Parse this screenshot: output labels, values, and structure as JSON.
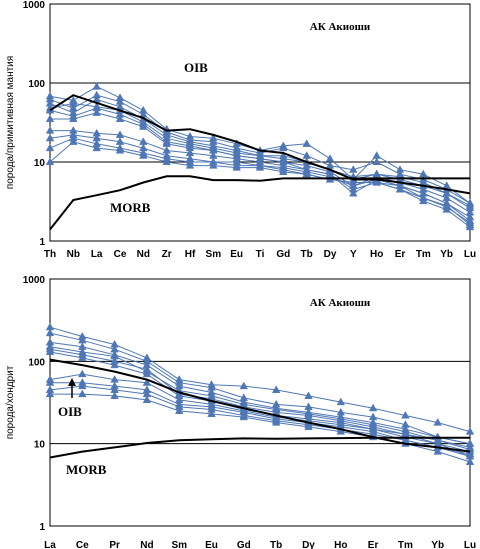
{
  "chart_data": [
    {
      "type": "line",
      "yscale": "log",
      "ylim": [
        1,
        1000
      ],
      "yticks": [
        "1",
        "10",
        "100",
        "1000"
      ],
      "ylabel": "порода/примитивная мантия",
      "title": "АК Акиоши",
      "categories": [
        "Th",
        "Nb",
        "La",
        "Ce",
        "Nd",
        "Zr",
        "Hf",
        "Sm",
        "Eu",
        "Ti",
        "Gd",
        "Tb",
        "Dy",
        "Y",
        "Ho",
        "Er",
        "Tm",
        "Yb",
        "Lu"
      ],
      "annotations": [
        {
          "text": "OIB"
        },
        {
          "text": "MORB"
        }
      ],
      "colors": {
        "samples": "#4f77b5",
        "reference": "#000000"
      },
      "grid": "horizontal",
      "reference_series": [
        {
          "name": "OIB",
          "values": [
            45,
            70,
            56,
            45,
            36,
            25,
            26,
            22,
            18,
            14,
            13,
            10,
            8,
            6,
            6,
            5.5,
            5,
            4.5,
            4
          ]
        },
        {
          "name": "MORB",
          "values": [
            1.4,
            3.3,
            3.8,
            4.4,
            5.5,
            6.6,
            6.6,
            5.9,
            5.9,
            5.8,
            6.2,
            6.2,
            6.2,
            6.2,
            6.2,
            6.2,
            6.2,
            6.2,
            6.2
          ]
        }
      ],
      "series": [
        {
          "values": [
            68,
            60,
            90,
            65,
            45,
            26,
            21,
            20,
            17,
            14,
            16,
            17,
            11,
            6,
            12,
            8,
            7,
            5,
            3
          ]
        },
        {
          "values": [
            62,
            48,
            70,
            58,
            40,
            24,
            19,
            18,
            15,
            13,
            15,
            12,
            9,
            8,
            10,
            7,
            6,
            4.5,
            3
          ]
        },
        {
          "values": [
            55,
            42,
            62,
            50,
            35,
            22,
            18,
            16,
            14,
            12,
            12,
            10,
            8,
            6,
            7,
            6.5,
            5.5,
            4,
            2.8
          ]
        },
        {
          "values": [
            48,
            55,
            50,
            45,
            32,
            20,
            17,
            15,
            13,
            12,
            11,
            10,
            8,
            6.5,
            7,
            6,
            5,
            4,
            2.6
          ]
        },
        {
          "values": [
            45,
            38,
            48,
            40,
            30,
            18,
            16,
            14,
            12,
            11,
            10,
            9,
            7.5,
            5,
            6.5,
            5.5,
            4.5,
            3.5,
            2.3
          ]
        },
        {
          "values": [
            35,
            35,
            42,
            35,
            28,
            17,
            15,
            14,
            12,
            11,
            10,
            8,
            7,
            4,
            6,
            5,
            4,
            3,
            2
          ]
        },
        {
          "values": [
            25,
            25,
            23,
            22,
            18,
            14,
            13,
            12,
            11,
            10,
            9,
            8,
            7,
            4.5,
            5.5,
            5,
            4,
            3,
            1.8
          ]
        },
        {
          "values": [
            20,
            22,
            20,
            18,
            15,
            12,
            11,
            10,
            10,
            9,
            8.5,
            7.5,
            6.5,
            5,
            6,
            5,
            3.5,
            2.8,
            1.6
          ]
        },
        {
          "values": [
            15,
            20,
            17,
            15,
            13,
            11,
            10,
            10,
            9,
            9,
            8,
            7,
            6,
            5.5,
            5.5,
            4.5,
            3.2,
            2.5,
            1.5
          ]
        },
        {
          "values": [
            10,
            18,
            15,
            14,
            12,
            10,
            9,
            9,
            8.5,
            8.5,
            7.5,
            7,
            6,
            5.5,
            5.5,
            4.5,
            3.5,
            2.7,
            1.7
          ]
        }
      ]
    },
    {
      "type": "line",
      "yscale": "log",
      "ylim": [
        1,
        1000
      ],
      "yticks": [
        "1",
        "10",
        "100",
        "1000"
      ],
      "ylabel": "порода/хондрит",
      "title": "АК Акиоши",
      "categories": [
        "La",
        "Ce",
        "Pr",
        "Nd",
        "Sm",
        "Eu",
        "Gd",
        "Tb",
        "Dy",
        "Ho",
        "Er",
        "Tm",
        "Yb",
        "Lu"
      ],
      "annotations": [
        {
          "text": "OIB"
        },
        {
          "text": "MORB"
        }
      ],
      "colors": {
        "samples": "#4f77b5",
        "reference": "#000000"
      },
      "grid": "horizontal",
      "reference_series": [
        {
          "name": "OIB",
          "values": [
            105,
            90,
            75,
            60,
            42,
            33,
            27,
            22,
            18,
            15,
            12,
            10,
            9,
            8
          ]
        },
        {
          "name": "MORB",
          "values": [
            6.8,
            8,
            9,
            10.2,
            11,
            11.3,
            11.6,
            11.5,
            11.6,
            11.7,
            11.8,
            11.8,
            11.8,
            11.8
          ]
        }
      ],
      "series": [
        {
          "values": [
            260,
            200,
            160,
            110,
            60,
            52,
            50,
            45,
            38,
            32,
            27,
            22,
            18,
            14
          ]
        },
        {
          "values": [
            220,
            180,
            140,
            100,
            55,
            48,
            36,
            30,
            28,
            24,
            21,
            17,
            12,
            10
          ]
        },
        {
          "values": [
            170,
            150,
            120,
            90,
            50,
            42,
            32,
            27,
            24,
            21,
            18,
            15,
            12,
            10
          ]
        },
        {
          "values": [
            150,
            130,
            115,
            75,
            44,
            38,
            30,
            26,
            23,
            20,
            17,
            14,
            11,
            9
          ]
        },
        {
          "values": [
            140,
            120,
            100,
            80,
            40,
            35,
            28,
            24,
            22,
            19,
            16,
            13,
            11,
            8.5
          ]
        },
        {
          "values": [
            130,
            110,
            90,
            70,
            38,
            33,
            26,
            22,
            20,
            18,
            15,
            13,
            10,
            8
          ]
        },
        {
          "values": [
            60,
            70,
            60,
            55,
            34,
            30,
            25,
            21,
            19,
            17,
            15,
            12,
            10,
            7
          ]
        },
        {
          "values": [
            55,
            55,
            50,
            45,
            30,
            28,
            24,
            20,
            18,
            16,
            14,
            11,
            9,
            7.5
          ]
        },
        {
          "values": [
            45,
            50,
            45,
            40,
            28,
            26,
            22,
            19,
            17,
            15,
            13,
            11,
            9,
            7
          ]
        },
        {
          "values": [
            40,
            40,
            38,
            34,
            25,
            23,
            21,
            18,
            16,
            14,
            12,
            10,
            8,
            6
          ]
        }
      ]
    }
  ]
}
